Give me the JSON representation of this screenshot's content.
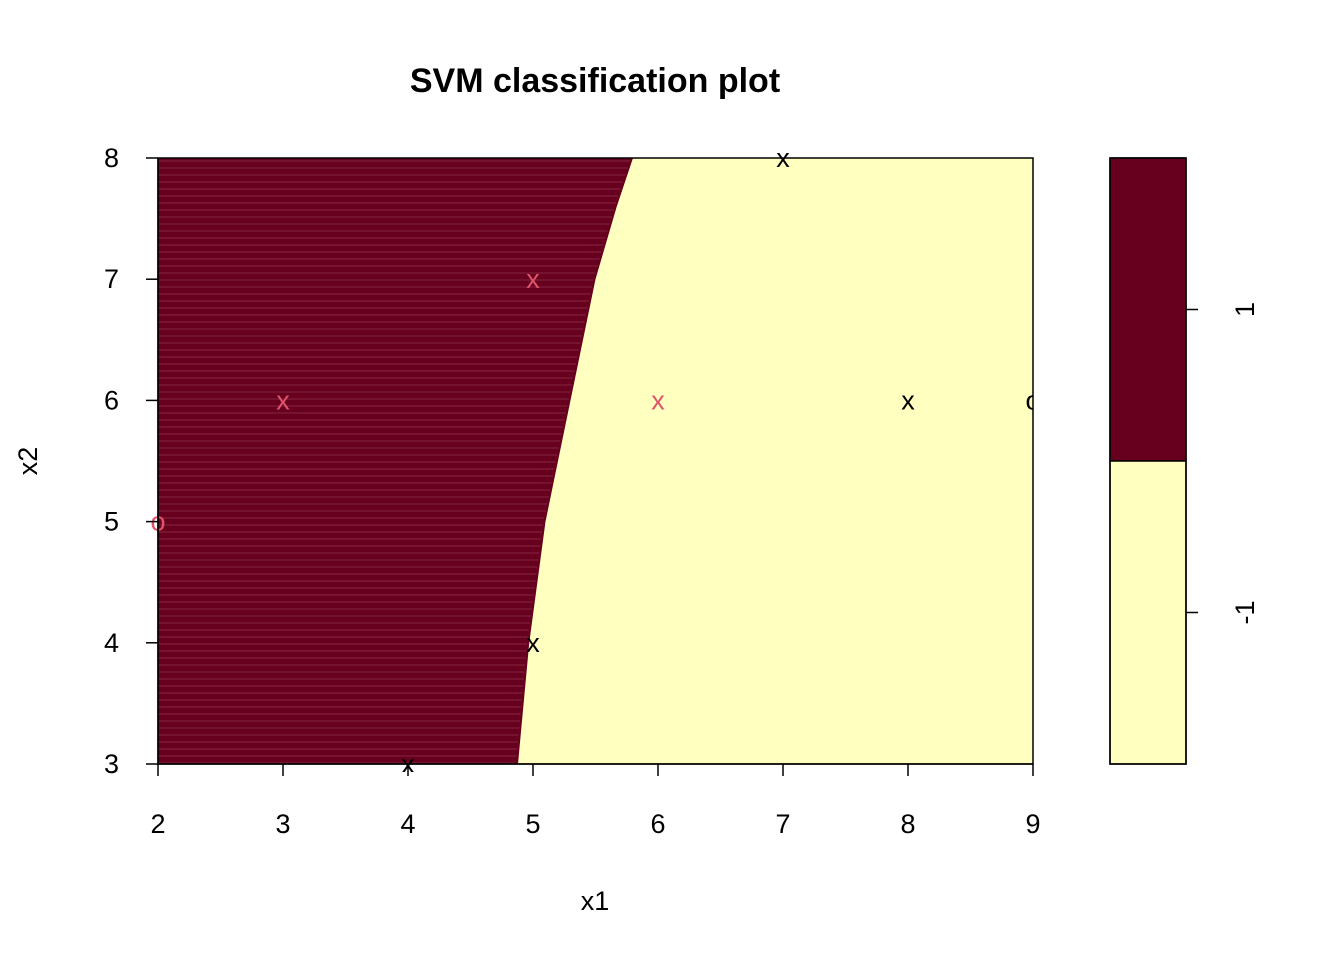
{
  "chart_data": {
    "type": "scatter",
    "title": "SVM classification plot",
    "xlabel": "x1",
    "ylabel": "x2",
    "xlim": [
      2,
      9
    ],
    "ylim": [
      3,
      8
    ],
    "x_ticks": [
      "2",
      "3",
      "4",
      "5",
      "6",
      "7",
      "8",
      "9"
    ],
    "y_ticks": [
      "3",
      "4",
      "5",
      "6",
      "7",
      "8"
    ],
    "regions": [
      {
        "class": "1",
        "color": "#67001F"
      },
      {
        "class": "-1",
        "color": "#FFFFBF"
      }
    ],
    "decision_boundary": [
      {
        "x2": 3.0,
        "x1": 4.88
      },
      {
        "x2": 4.0,
        "x1": 4.97
      },
      {
        "x2": 5.0,
        "x1": 5.1
      },
      {
        "x2": 6.0,
        "x1": 5.3
      },
      {
        "x2": 7.0,
        "x1": 5.5
      },
      {
        "x2": 7.6,
        "x1": 5.67
      },
      {
        "x2": 8.0,
        "x1": 5.8
      }
    ],
    "legend": {
      "placement": "right",
      "entries": [
        {
          "label": "1",
          "color": "#67001F"
        },
        {
          "label": "-1",
          "color": "#FFFFBF"
        }
      ]
    },
    "points": [
      {
        "x1": 2,
        "x2": 5,
        "symbol": "o",
        "class": "1",
        "color": "#DF536B"
      },
      {
        "x1": 3,
        "x2": 6,
        "symbol": "x",
        "class": "1",
        "color": "#DF536B"
      },
      {
        "x1": 4,
        "x2": 3,
        "symbol": "x",
        "class": "-1",
        "color": "#000000"
      },
      {
        "x1": 5,
        "x2": 7,
        "symbol": "x",
        "class": "1",
        "color": "#DF536B"
      },
      {
        "x1": 5,
        "x2": 4,
        "symbol": "x",
        "class": "-1",
        "color": "#000000"
      },
      {
        "x1": 6,
        "x2": 6,
        "symbol": "x",
        "class": "1",
        "color": "#DF536B"
      },
      {
        "x1": 7,
        "x2": 8,
        "symbol": "x",
        "class": "-1",
        "color": "#000000"
      },
      {
        "x1": 8,
        "x2": 6,
        "symbol": "x",
        "class": "-1",
        "color": "#000000"
      },
      {
        "x1": 9,
        "x2": 6,
        "symbol": "o",
        "class": "-1",
        "color": "#000000"
      }
    ]
  }
}
